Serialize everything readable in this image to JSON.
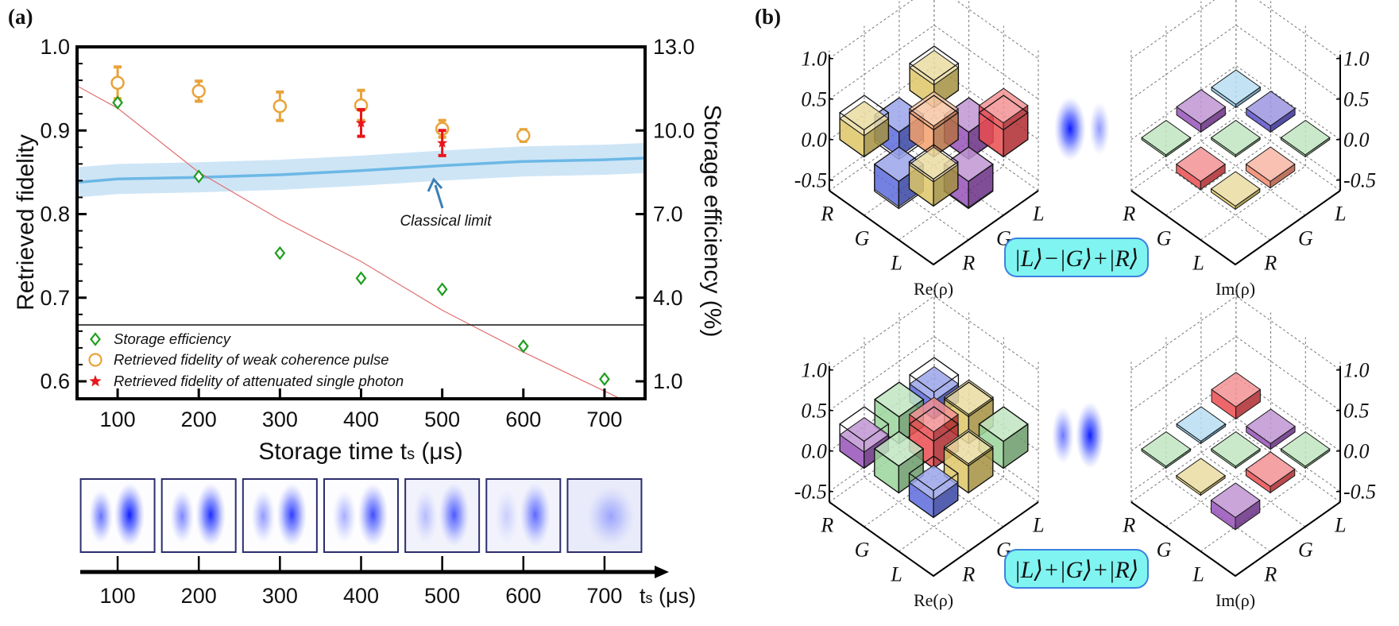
{
  "panel_a": {
    "label": "(a)"
  },
  "panel_b": {
    "label": "(b)",
    "states": [
      {
        "ket": "|L⟩−|G⟩+|R⟩"
      },
      {
        "ket": "|L⟩+|G⟩+|R⟩"
      }
    ]
  },
  "chart_data": [
    {
      "type": "scatter",
      "title": "",
      "xlabel": {
        "main": "Storage time t",
        "sub": "s",
        "unit": " (μs)"
      },
      "ylabel": "Retrieved fidelity",
      "y2label": "Storage efficiency (%)",
      "xlim": [
        50,
        750
      ],
      "ylim": [
        0.579,
        1.0
      ],
      "y2lim": [
        0.37,
        13.0
      ],
      "xticks": [
        "100",
        "200",
        "300",
        "400",
        "500",
        "600",
        "700"
      ],
      "yticks": [
        "0.6",
        "0.7",
        "0.8",
        "0.9",
        "1.0"
      ],
      "y2ticks": [
        "1.0",
        "4.0",
        "7.0",
        "10.0",
        "13.0"
      ],
      "grid": false,
      "legend_placement": "bottom-left",
      "series": [
        {
          "name": "Storage efficiency",
          "axis": "right",
          "marker": "diamond",
          "color": "#1e9e1e",
          "x": [
            100,
            200,
            300,
            400,
            500,
            600,
            700
          ],
          "y": [
            11.0,
            8.35,
            5.6,
            4.7,
            4.3,
            2.26,
            1.08
          ]
        },
        {
          "name": "Retrieved fidelity of weak coherence pulse",
          "axis": "left",
          "marker": "circle",
          "color": "#e8a33a",
          "x": [
            100,
            200,
            300,
            400,
            500,
            600
          ],
          "y": [
            0.957,
            0.947,
            0.929,
            0.93,
            0.902,
            0.894
          ],
          "error": [
            0.019,
            0.012,
            0.017,
            0.018,
            0.01,
            0.007
          ]
        },
        {
          "name": "Retrieved fidelity of  attenuated single photon",
          "axis": "left",
          "marker": "star",
          "color": "#e8161b",
          "x": [
            400,
            500
          ],
          "y": [
            0.909,
            0.885
          ],
          "error": [
            0.016,
            0.015
          ]
        }
      ],
      "fit_line": {
        "axis": "right",
        "color": "#e07070",
        "x": [
          50,
          100,
          200,
          300,
          400,
          500,
          600,
          720
        ],
        "y": [
          11.6,
          10.8,
          8.5,
          6.8,
          5.3,
          3.55,
          2.05,
          0.37
        ]
      },
      "classical_limit": {
        "label": "Classical limit",
        "color": "#6cb8e6",
        "band_color": "#c6e0f5",
        "axis": "left",
        "x": [
          50,
          100,
          200,
          300,
          400,
          500,
          600,
          700,
          750
        ],
        "y": [
          0.838,
          0.842,
          0.844,
          0.847,
          0.852,
          0.858,
          0.863,
          0.865,
          0.867
        ],
        "band": 0.018
      },
      "image_strip": {
        "xticks": [
          "100",
          "200",
          "300",
          "400",
          "500",
          "600",
          "700"
        ],
        "axis_main": "t",
        "axis_sub": "s",
        "axis_unit": " (μs)"
      }
    },
    {
      "type": "bar3d",
      "title": "Re(ρ)",
      "state": 0,
      "axis_side": "left",
      "rows": [
        "R",
        "G",
        "L"
      ],
      "cols": [
        "R",
        "G",
        "L"
      ],
      "zticks": [
        "1.0",
        "0.5",
        "0.0",
        "-0.5"
      ],
      "values": [
        [
          0.26,
          -0.3,
          0.28
        ],
        [
          -0.31,
          0.38,
          -0.33
        ],
        [
          0.3,
          -0.32,
          0.42
        ]
      ],
      "ideal": [
        [
          0.333,
          -0.333,
          0.333
        ],
        [
          -0.333,
          0.333,
          -0.333
        ],
        [
          0.333,
          -0.333,
          0.333
        ]
      ],
      "colors": [
        [
          "#d9c055",
          "#4a5bd8",
          "#d9c055"
        ],
        [
          "#4a5bd8",
          "#f0955a",
          "#8a3fb0"
        ],
        [
          "#d9c055",
          "#8a3fb0",
          "#e8383d"
        ]
      ]
    },
    {
      "type": "bar3d",
      "title": "Im(ρ)",
      "state": 0,
      "axis_side": "right",
      "rows": [
        "R",
        "G",
        "L"
      ],
      "cols": [
        "R",
        "G",
        "L"
      ],
      "zticks": [
        "1.0",
        "0.5",
        "0.0",
        "-0.5"
      ],
      "values": [
        [
          0.0,
          0.1,
          0.04
        ],
        [
          -0.1,
          0.0,
          0.08
        ],
        [
          -0.04,
          -0.08,
          0.0
        ]
      ],
      "colors": [
        [
          "#8fcf8f",
          "#8a3fb0",
          "#7fc3e8"
        ],
        [
          "#e8383d",
          "#8fcf8f",
          "#4b3fc8"
        ],
        [
          "#d9c055",
          "#f07a5a",
          "#8fcf8f"
        ]
      ]
    },
    {
      "type": "bar3d",
      "title": "Re(ρ)",
      "state": 1,
      "axis_side": "left",
      "rows": [
        "R",
        "G",
        "L"
      ],
      "cols": [
        "R",
        "G",
        "L"
      ],
      "zticks": [
        "1.0",
        "0.5",
        "0.0",
        "-0.5"
      ],
      "values": [
        [
          0.2,
          0.33,
          0.22
        ],
        [
          0.33,
          0.45,
          0.36
        ],
        [
          0.22,
          0.36,
          0.33
        ]
      ],
      "ideal": [
        [
          0.333,
          0.333,
          0.333
        ],
        [
          0.333,
          0.333,
          0.333
        ],
        [
          0.333,
          0.333,
          0.333
        ]
      ],
      "colors": [
        [
          "#8a3fb0",
          "#8fcf8f",
          "#4a5bd8"
        ],
        [
          "#8fcf8f",
          "#e8383d",
          "#d9c055"
        ],
        [
          "#4a5bd8",
          "#d9c055",
          "#8fcf8f"
        ]
      ]
    },
    {
      "type": "bar3d",
      "title": "Im(ρ)",
      "state": 1,
      "axis_side": "right",
      "rows": [
        "R",
        "G",
        "L"
      ],
      "cols": [
        "R",
        "G",
        "L"
      ],
      "zticks": [
        "1.0",
        "0.5",
        "0.0",
        "-0.5"
      ],
      "values": [
        [
          0.0,
          0.03,
          0.15
        ],
        [
          -0.03,
          0.0,
          -0.07
        ],
        [
          -0.15,
          0.08,
          0.0
        ]
      ],
      "colors": [
        [
          "#8fcf8f",
          "#7fc3e8",
          "#e8383d"
        ],
        [
          "#d9c055",
          "#8fcf8f",
          "#8a3fb0"
        ],
        [
          "#8a3fb0",
          "#e8383d",
          "#8fcf8f"
        ]
      ]
    }
  ]
}
